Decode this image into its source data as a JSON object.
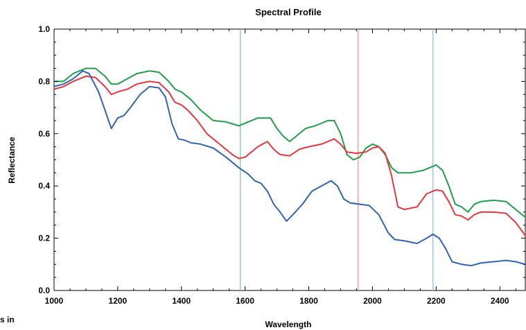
{
  "chart_data": {
    "type": "line",
    "title": "Spectral Profile",
    "xlabel": "Wavelength",
    "ylabel": "Reflectance",
    "xlim": [
      1000,
      2480
    ],
    "ylim": [
      0.0,
      1.0
    ],
    "xticks": [
      1000,
      1200,
      1400,
      1600,
      1800,
      2000,
      2200,
      2400
    ],
    "xtick_labels": [
      "1000",
      "1200",
      "1400",
      "1600",
      "1800",
      "2000",
      "2200",
      "2400"
    ],
    "yticks": [
      0.0,
      0.2,
      0.4,
      0.6,
      0.8,
      1.0
    ],
    "ytick_labels": [
      "0.0",
      "0.2",
      "0.4",
      "0.6",
      "0.8",
      "1.0"
    ],
    "grid": false,
    "series": [
      {
        "color": "#1f9e48",
        "points": [
          [
            1000,
            0.8
          ],
          [
            1030,
            0.8
          ],
          [
            1060,
            0.83
          ],
          [
            1100,
            0.85
          ],
          [
            1130,
            0.85
          ],
          [
            1160,
            0.82
          ],
          [
            1180,
            0.79
          ],
          [
            1200,
            0.79
          ],
          [
            1230,
            0.81
          ],
          [
            1260,
            0.83
          ],
          [
            1300,
            0.84
          ],
          [
            1330,
            0.835
          ],
          [
            1360,
            0.8
          ],
          [
            1380,
            0.77
          ],
          [
            1400,
            0.76
          ],
          [
            1430,
            0.73
          ],
          [
            1460,
            0.69
          ],
          [
            1500,
            0.65
          ],
          [
            1540,
            0.645
          ],
          [
            1580,
            0.63
          ],
          [
            1600,
            0.64
          ],
          [
            1640,
            0.66
          ],
          [
            1680,
            0.66
          ],
          [
            1700,
            0.62
          ],
          [
            1720,
            0.59
          ],
          [
            1740,
            0.57
          ],
          [
            1760,
            0.59
          ],
          [
            1790,
            0.62
          ],
          [
            1820,
            0.63
          ],
          [
            1860,
            0.65
          ],
          [
            1880,
            0.65
          ],
          [
            1900,
            0.6
          ],
          [
            1920,
            0.52
          ],
          [
            1940,
            0.5
          ],
          [
            1960,
            0.51
          ],
          [
            1980,
            0.545
          ],
          [
            2000,
            0.56
          ],
          [
            2020,
            0.55
          ],
          [
            2040,
            0.52
          ],
          [
            2060,
            0.47
          ],
          [
            2080,
            0.45
          ],
          [
            2120,
            0.45
          ],
          [
            2160,
            0.46
          ],
          [
            2180,
            0.47
          ],
          [
            2200,
            0.48
          ],
          [
            2220,
            0.46
          ],
          [
            2240,
            0.4
          ],
          [
            2260,
            0.33
          ],
          [
            2280,
            0.32
          ],
          [
            2300,
            0.3
          ],
          [
            2320,
            0.33
          ],
          [
            2340,
            0.34
          ],
          [
            2380,
            0.345
          ],
          [
            2420,
            0.34
          ],
          [
            2450,
            0.31
          ],
          [
            2480,
            0.28
          ]
        ]
      },
      {
        "color": "#e8353a",
        "points": [
          [
            1000,
            0.77
          ],
          [
            1030,
            0.78
          ],
          [
            1060,
            0.8
          ],
          [
            1100,
            0.82
          ],
          [
            1130,
            0.815
          ],
          [
            1160,
            0.78
          ],
          [
            1180,
            0.75
          ],
          [
            1200,
            0.76
          ],
          [
            1230,
            0.77
          ],
          [
            1260,
            0.79
          ],
          [
            1300,
            0.8
          ],
          [
            1330,
            0.795
          ],
          [
            1360,
            0.76
          ],
          [
            1380,
            0.72
          ],
          [
            1400,
            0.71
          ],
          [
            1420,
            0.69
          ],
          [
            1450,
            0.65
          ],
          [
            1480,
            0.6
          ],
          [
            1520,
            0.56
          ],
          [
            1560,
            0.52
          ],
          [
            1580,
            0.505
          ],
          [
            1600,
            0.51
          ],
          [
            1640,
            0.55
          ],
          [
            1670,
            0.57
          ],
          [
            1690,
            0.54
          ],
          [
            1710,
            0.52
          ],
          [
            1740,
            0.515
          ],
          [
            1770,
            0.54
          ],
          [
            1800,
            0.55
          ],
          [
            1840,
            0.56
          ],
          [
            1880,
            0.58
          ],
          [
            1900,
            0.56
          ],
          [
            1920,
            0.53
          ],
          [
            1950,
            0.525
          ],
          [
            1980,
            0.53
          ],
          [
            2000,
            0.545
          ],
          [
            2020,
            0.55
          ],
          [
            2040,
            0.525
          ],
          [
            2060,
            0.44
          ],
          [
            2080,
            0.32
          ],
          [
            2100,
            0.31
          ],
          [
            2140,
            0.32
          ],
          [
            2170,
            0.37
          ],
          [
            2200,
            0.385
          ],
          [
            2220,
            0.38
          ],
          [
            2240,
            0.34
          ],
          [
            2260,
            0.29
          ],
          [
            2280,
            0.285
          ],
          [
            2300,
            0.27
          ],
          [
            2320,
            0.29
          ],
          [
            2340,
            0.3
          ],
          [
            2380,
            0.3
          ],
          [
            2420,
            0.295
          ],
          [
            2450,
            0.26
          ],
          [
            2480,
            0.21
          ]
        ]
      },
      {
        "color": "#2f63b5",
        "points": [
          [
            1000,
            0.78
          ],
          [
            1030,
            0.79
          ],
          [
            1060,
            0.81
          ],
          [
            1090,
            0.84
          ],
          [
            1110,
            0.83
          ],
          [
            1140,
            0.76
          ],
          [
            1160,
            0.69
          ],
          [
            1180,
            0.62
          ],
          [
            1200,
            0.66
          ],
          [
            1220,
            0.67
          ],
          [
            1240,
            0.7
          ],
          [
            1270,
            0.75
          ],
          [
            1300,
            0.78
          ],
          [
            1330,
            0.775
          ],
          [
            1350,
            0.74
          ],
          [
            1370,
            0.64
          ],
          [
            1390,
            0.58
          ],
          [
            1410,
            0.575
          ],
          [
            1430,
            0.565
          ],
          [
            1460,
            0.56
          ],
          [
            1500,
            0.545
          ],
          [
            1540,
            0.51
          ],
          [
            1580,
            0.47
          ],
          [
            1610,
            0.445
          ],
          [
            1630,
            0.42
          ],
          [
            1650,
            0.41
          ],
          [
            1670,
            0.38
          ],
          [
            1690,
            0.33
          ],
          [
            1710,
            0.3
          ],
          [
            1730,
            0.265
          ],
          [
            1750,
            0.29
          ],
          [
            1780,
            0.33
          ],
          [
            1810,
            0.38
          ],
          [
            1840,
            0.4
          ],
          [
            1870,
            0.42
          ],
          [
            1890,
            0.4
          ],
          [
            1910,
            0.35
          ],
          [
            1930,
            0.335
          ],
          [
            1960,
            0.33
          ],
          [
            1990,
            0.325
          ],
          [
            2020,
            0.29
          ],
          [
            2050,
            0.22
          ],
          [
            2070,
            0.195
          ],
          [
            2100,
            0.19
          ],
          [
            2140,
            0.18
          ],
          [
            2170,
            0.2
          ],
          [
            2190,
            0.215
          ],
          [
            2210,
            0.2
          ],
          [
            2230,
            0.16
          ],
          [
            2250,
            0.11
          ],
          [
            2280,
            0.1
          ],
          [
            2310,
            0.095
          ],
          [
            2340,
            0.105
          ],
          [
            2380,
            0.11
          ],
          [
            2420,
            0.115
          ],
          [
            2450,
            0.11
          ],
          [
            2480,
            0.1
          ]
        ]
      }
    ],
    "vertical_markers": [
      {
        "x": 1585,
        "color": "#8fd1a8"
      },
      {
        "x": 1955,
        "color": "#f2a0a0"
      },
      {
        "x": 2190,
        "color": "#9fc3e6"
      }
    ]
  },
  "stray_text": "s in"
}
